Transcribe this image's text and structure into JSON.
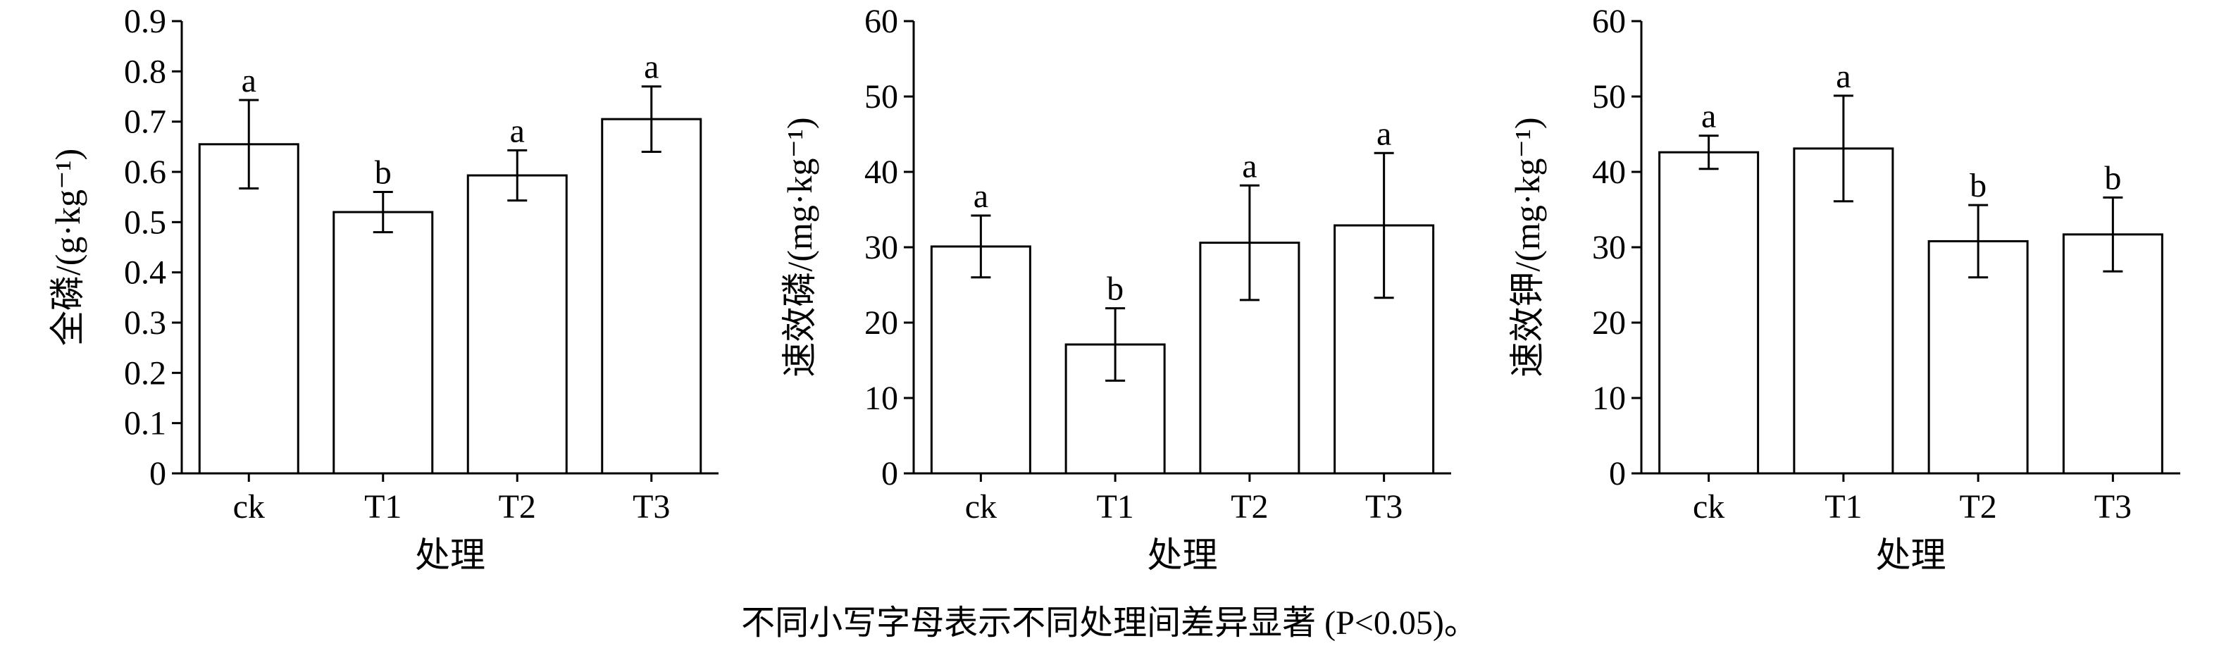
{
  "note": "不同小写字母表示不同处理间差异显著 (P<0.05)。",
  "chart_data": [
    {
      "type": "bar",
      "categories": [
        "ck",
        "T1",
        "T2",
        "T3"
      ],
      "values": [
        0.655,
        0.52,
        0.593,
        0.705
      ],
      "error": [
        0.088,
        0.04,
        0.05,
        0.065
      ],
      "letters": [
        "a",
        "b",
        "a",
        "a"
      ],
      "ylabel": "全磷/(g·kg⁻¹)",
      "xlabel": "处理",
      "ylim": [
        0,
        0.9
      ],
      "yticks": [
        "0",
        "0.1",
        "0.2",
        "0.3",
        "0.4",
        "0.5",
        "0.6",
        "0.7",
        "0.8",
        "0.9"
      ]
    },
    {
      "type": "bar",
      "categories": [
        "ck",
        "T1",
        "T2",
        "T3"
      ],
      "values": [
        30.1,
        17.1,
        30.6,
        32.9
      ],
      "error": [
        4.1,
        4.8,
        7.6,
        9.6
      ],
      "letters": [
        "a",
        "b",
        "a",
        "a"
      ],
      "ylabel": "速效磷/(mg·kg⁻¹)",
      "xlabel": "处理",
      "ylim": [
        0,
        60
      ],
      "yticks": [
        "0",
        "10",
        "20",
        "30",
        "40",
        "50",
        "60"
      ]
    },
    {
      "type": "bar",
      "categories": [
        "ck",
        "T1",
        "T2",
        "T3"
      ],
      "values": [
        42.6,
        43.1,
        30.8,
        31.7
      ],
      "error": [
        2.2,
        7.0,
        4.8,
        4.9
      ],
      "letters": [
        "a",
        "a",
        "b",
        "b"
      ],
      "ylabel": "速效钾/(mg·kg⁻¹)",
      "xlabel": "处理",
      "ylim": [
        0,
        60
      ],
      "yticks": [
        "0",
        "10",
        "20",
        "30",
        "40",
        "50",
        "60"
      ]
    }
  ]
}
